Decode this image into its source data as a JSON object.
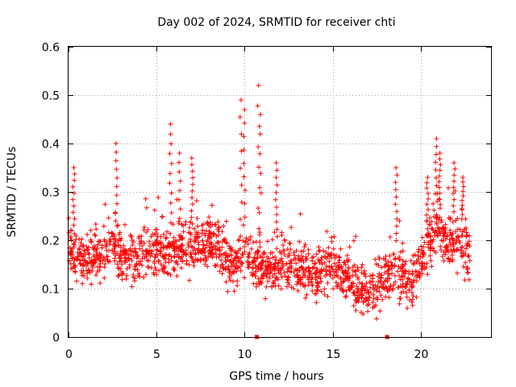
{
  "chart_data": {
    "type": "scatter",
    "title": "Day 002 of 2024, SRMTID for receiver chti",
    "xlabel": "GPS time / hours",
    "ylabel": "SRMTID / TECUs",
    "xlim": [
      0,
      24
    ],
    "ylim": [
      0,
      0.6
    ],
    "x_ticks": [
      0,
      5,
      10,
      15,
      20
    ],
    "x_tick_labels": [
      "0",
      "5",
      "10",
      "15",
      "20"
    ],
    "y_ticks": [
      0,
      0.1,
      0.2,
      0.3,
      0.4,
      0.5,
      0.6
    ],
    "y_tick_labels": [
      "0",
      "0.1",
      "0.2",
      "0.3",
      "0.4",
      "0.5",
      "0.6"
    ],
    "grid": true,
    "marker": "plus",
    "color": "#ff0000",
    "trend": [
      {
        "x": 0.0,
        "y": 0.19
      },
      {
        "x": 0.5,
        "y": 0.17
      },
      {
        "x": 1.0,
        "y": 0.16
      },
      {
        "x": 1.5,
        "y": 0.17
      },
      {
        "x": 2.0,
        "y": 0.18
      },
      {
        "x": 2.5,
        "y": 0.19
      },
      {
        "x": 3.0,
        "y": 0.17
      },
      {
        "x": 3.5,
        "y": 0.16
      },
      {
        "x": 4.0,
        "y": 0.16
      },
      {
        "x": 4.5,
        "y": 0.18
      },
      {
        "x": 5.0,
        "y": 0.19
      },
      {
        "x": 5.5,
        "y": 0.17
      },
      {
        "x": 6.0,
        "y": 0.18
      },
      {
        "x": 6.5,
        "y": 0.19
      },
      {
        "x": 7.0,
        "y": 0.18
      },
      {
        "x": 7.5,
        "y": 0.19
      },
      {
        "x": 8.0,
        "y": 0.2
      },
      {
        "x": 8.5,
        "y": 0.19
      },
      {
        "x": 9.0,
        "y": 0.14
      },
      {
        "x": 9.5,
        "y": 0.15
      },
      {
        "x": 10.0,
        "y": 0.18
      },
      {
        "x": 10.5,
        "y": 0.16
      },
      {
        "x": 11.0,
        "y": 0.13
      },
      {
        "x": 11.5,
        "y": 0.14
      },
      {
        "x": 12.0,
        "y": 0.16
      },
      {
        "x": 12.5,
        "y": 0.15
      },
      {
        "x": 13.0,
        "y": 0.14
      },
      {
        "x": 13.5,
        "y": 0.13
      },
      {
        "x": 14.0,
        "y": 0.12
      },
      {
        "x": 14.5,
        "y": 0.15
      },
      {
        "x": 15.0,
        "y": 0.15
      },
      {
        "x": 15.5,
        "y": 0.13
      },
      {
        "x": 16.0,
        "y": 0.12
      },
      {
        "x": 16.5,
        "y": 0.1
      },
      {
        "x": 17.0,
        "y": 0.09
      },
      {
        "x": 17.5,
        "y": 0.1
      },
      {
        "x": 18.0,
        "y": 0.12
      },
      {
        "x": 18.5,
        "y": 0.15
      },
      {
        "x": 19.0,
        "y": 0.12
      },
      {
        "x": 19.5,
        "y": 0.11
      },
      {
        "x": 20.0,
        "y": 0.15
      },
      {
        "x": 20.5,
        "y": 0.2
      },
      {
        "x": 21.0,
        "y": 0.23
      },
      {
        "x": 21.5,
        "y": 0.19
      },
      {
        "x": 22.0,
        "y": 0.21
      },
      {
        "x": 22.5,
        "y": 0.19
      },
      {
        "x": 22.8,
        "y": 0.17
      }
    ],
    "peaks": [
      {
        "x": 0.3,
        "y": 0.35
      },
      {
        "x": 2.7,
        "y": 0.4
      },
      {
        "x": 5.8,
        "y": 0.44
      },
      {
        "x": 6.3,
        "y": 0.38
      },
      {
        "x": 7.0,
        "y": 0.37
      },
      {
        "x": 9.8,
        "y": 0.49
      },
      {
        "x": 10.0,
        "y": 0.47
      },
      {
        "x": 10.8,
        "y": 0.52
      },
      {
        "x": 10.9,
        "y": 0.46
      },
      {
        "x": 11.8,
        "y": 0.36
      },
      {
        "x": 18.6,
        "y": 0.35
      },
      {
        "x": 20.4,
        "y": 0.33
      },
      {
        "x": 20.9,
        "y": 0.41
      },
      {
        "x": 21.1,
        "y": 0.38
      },
      {
        "x": 21.9,
        "y": 0.36
      },
      {
        "x": 22.4,
        "y": 0.33
      }
    ],
    "zero_values_x": [
      10.7,
      18.1
    ],
    "n_points": 1700,
    "spread": 0.05
  }
}
